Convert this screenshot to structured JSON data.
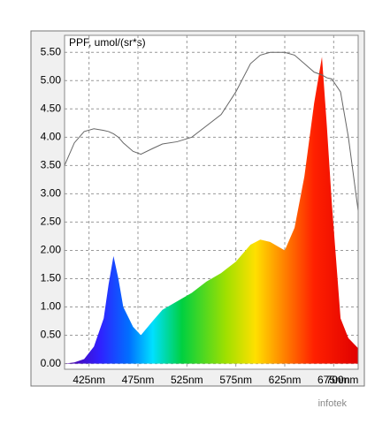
{
  "chart_data": {
    "type": "area",
    "y_label": "PPF, umol/(sr*s)",
    "watermark": "infotek",
    "x": [
      400,
      410,
      420,
      430,
      440,
      445,
      450,
      455,
      460,
      470,
      478,
      490,
      500,
      515,
      530,
      545,
      560,
      575,
      590,
      600,
      610,
      625,
      635,
      645,
      655,
      663,
      668,
      673,
      682,
      690,
      700
    ],
    "series": [
      {
        "type": "area",
        "values": [
          0,
          0.02,
          0.08,
          0.3,
          0.8,
          1.4,
          1.9,
          1.5,
          1.0,
          0.65,
          0.5,
          0.75,
          0.95,
          1.1,
          1.25,
          1.45,
          1.6,
          1.8,
          2.1,
          2.19,
          2.15,
          2.0,
          2.4,
          3.3,
          4.6,
          5.42,
          4.2,
          2.85,
          0.8,
          0.45,
          0.27
        ]
      },
      {
        "type": "line",
        "color": "#666666",
        "values": [
          3.5,
          3.9,
          4.1,
          4.15,
          4.12,
          4.1,
          4.06,
          4.0,
          3.9,
          3.75,
          3.7,
          3.8,
          3.88,
          3.92,
          4.0,
          4.2,
          4.4,
          4.8,
          5.3,
          5.45,
          5.5,
          5.5,
          5.45,
          5.3,
          5.15,
          5.1,
          5.05,
          5.03,
          4.8,
          4.0,
          2.7
        ]
      }
    ],
    "xlim": [
      400,
      700
    ],
    "ylim": [
      -0.1,
      5.8
    ],
    "xticks": [
      {
        "value": 425,
        "label": "425nm"
      },
      {
        "value": 475,
        "label": "475nm"
      },
      {
        "value": 525,
        "label": "525nm"
      },
      {
        "value": 575,
        "label": "575nm"
      },
      {
        "value": 625,
        "label": "625nm"
      },
      {
        "value": 675,
        "label": "675nm"
      },
      {
        "value": 700,
        "label": "700nm"
      }
    ],
    "yticks": [
      {
        "value": 0,
        "label": "0.00"
      },
      {
        "value": 0.5,
        "label": "0.50"
      },
      {
        "value": 1,
        "label": "1.00"
      },
      {
        "value": 1.5,
        "label": "1.50"
      },
      {
        "value": 2,
        "label": "2.00"
      },
      {
        "value": 2.5,
        "label": "2.50"
      },
      {
        "value": 3,
        "label": "3.00"
      },
      {
        "value": 3.5,
        "label": "3.50"
      },
      {
        "value": 4,
        "label": "4.00"
      },
      {
        "value": 4.5,
        "label": "4.50"
      },
      {
        "value": 5,
        "label": "5.00"
      },
      {
        "value": 5.5,
        "label": "5.50"
      }
    ],
    "grid": true
  }
}
